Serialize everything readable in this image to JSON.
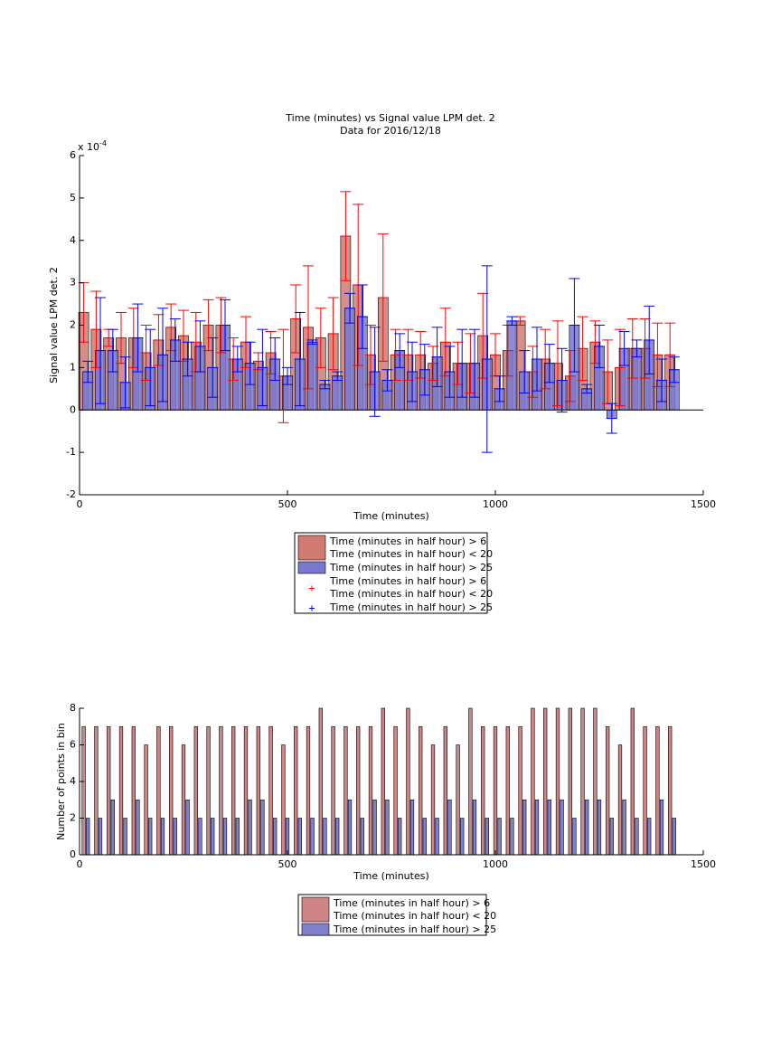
{
  "chart_data": [
    {
      "type": "bar_errorbar",
      "title": "Time (minutes) vs Signal value LPM det. 2",
      "subtitle": "Data for 2016/12/18",
      "x_label": "Time (minutes)",
      "y_label": "Signal value LPM det. 2",
      "y_multiplier": "x 10",
      "y_exponent": "-4",
      "x": [
        15,
        45,
        75,
        105,
        135,
        165,
        195,
        225,
        255,
        285,
        315,
        345,
        375,
        405,
        435,
        465,
        495,
        525,
        555,
        585,
        615,
        645,
        675,
        705,
        735,
        765,
        795,
        825,
        855,
        885,
        915,
        945,
        975,
        1005,
        1035,
        1065,
        1095,
        1125,
        1155,
        1185,
        1215,
        1245,
        1275,
        1305,
        1335,
        1365,
        1395,
        1425
      ],
      "xlim": [
        0,
        1500
      ],
      "xticks": [
        0,
        500,
        1000,
        1500
      ],
      "ylim": [
        -2,
        6
      ],
      "yticks": [
        -2,
        -1,
        0,
        1,
        2,
        3,
        4,
        5,
        6
      ],
      "series": [
        {
          "name": [
            "Time (minutes in half hour) > 6",
            "Time (minutes in half hour) < 20"
          ],
          "color": "#d07a72",
          "error_color": "#ff0000",
          "values": [
            2.3,
            1.9,
            1.7,
            1.7,
            1.7,
            1.35,
            1.65,
            1.95,
            1.75,
            1.6,
            2.0,
            2.0,
            1.2,
            1.6,
            1.15,
            1.35,
            0.8,
            2.15,
            1.95,
            1.7,
            1.8,
            4.1,
            2.95,
            1.3,
            2.65,
            1.3,
            1.3,
            1.3,
            1.1,
            1.6,
            1.1,
            1.1,
            1.75,
            1.3,
            1.4,
            2.1,
            0.9,
            1.2,
            1.1,
            0.8,
            1.45,
            1.6,
            0.9,
            1.0,
            1.45,
            1.45,
            1.3,
            1.3
          ],
          "errors": [
            0.7,
            0.9,
            0.2,
            0.6,
            0.7,
            0.65,
            0.6,
            0.55,
            0.6,
            0.7,
            0.6,
            0.65,
            0.5,
            0.6,
            0.2,
            0.5,
            1.1,
            0.8,
            1.45,
            0.7,
            0.85,
            1.05,
            1.9,
            0.7,
            1.5,
            0.6,
            0.6,
            0.55,
            0.4,
            0.8,
            0.5,
            0.7,
            1.0,
            0.5,
            0.6,
            0.1,
            0.6,
            0.7,
            1.0,
            0.6,
            0.75,
            0.5,
            0.75,
            0.9,
            0.7,
            0.7,
            0.75,
            0.75
          ]
        },
        {
          "name": [
            "Time (minutes in half hour) > 25"
          ],
          "color": "#7878d2",
          "error_color": "#0000ff",
          "values": [
            0.9,
            1.4,
            1.4,
            0.65,
            1.7,
            1.0,
            1.3,
            1.65,
            1.2,
            1.5,
            1.0,
            2.0,
            1.2,
            1.1,
            1.0,
            1.2,
            0.8,
            1.2,
            1.6,
            0.6,
            0.8,
            2.4,
            2.2,
            0.9,
            0.7,
            1.4,
            0.9,
            0.95,
            1.25,
            0.9,
            1.1,
            1.1,
            1.2,
            0.5,
            2.1,
            0.9,
            1.2,
            1.1,
            0.7,
            2.0,
            0.5,
            1.5,
            -0.2,
            1.45,
            1.45,
            1.65,
            0.7,
            0.95
          ],
          "errors": [
            0.25,
            1.25,
            0.5,
            0.6,
            0.8,
            0.9,
            1.1,
            0.5,
            0.4,
            0.6,
            0.7,
            0.6,
            0.3,
            0.5,
            0.9,
            0.5,
            0.2,
            1.1,
            0.05,
            0.1,
            0.1,
            0.35,
            0.75,
            1.05,
            0.25,
            0.4,
            0.7,
            0.6,
            0.7,
            0.6,
            0.8,
            0.8,
            2.2,
            0.3,
            0.1,
            0.5,
            0.75,
            0.45,
            0.75,
            1.1,
            0.1,
            0.5,
            0.35,
            0.4,
            0.2,
            0.8,
            0.5,
            0.3
          ]
        }
      ]
    },
    {
      "type": "bar",
      "x_label": "Time (minutes)",
      "y_label": "Number of points in bin",
      "x": [
        15,
        45,
        75,
        105,
        135,
        165,
        195,
        225,
        255,
        285,
        315,
        345,
        375,
        405,
        435,
        465,
        495,
        525,
        555,
        585,
        615,
        645,
        675,
        705,
        735,
        765,
        795,
        825,
        855,
        885,
        915,
        945,
        975,
        1005,
        1035,
        1065,
        1095,
        1125,
        1155,
        1185,
        1215,
        1245,
        1275,
        1305,
        1335,
        1365,
        1395,
        1425
      ],
      "xlim": [
        0,
        1500
      ],
      "xticks": [
        0,
        500,
        1000,
        1500
      ],
      "ylim": [
        0,
        8
      ],
      "yticks": [
        0,
        2,
        4,
        6,
        8
      ],
      "series": [
        {
          "name": [
            "Time (minutes in half hour) > 6",
            "Time (minutes in half hour) < 20"
          ],
          "color": "#cf8585",
          "values": [
            7,
            7,
            7,
            7,
            7,
            6,
            7,
            7,
            6,
            7,
            7,
            7,
            7,
            7,
            7,
            7,
            6,
            7,
            7,
            8,
            7,
            7,
            7,
            7,
            8,
            7,
            8,
            7,
            6,
            7,
            6,
            8,
            7,
            7,
            7,
            7,
            8,
            8,
            8,
            8,
            8,
            8,
            7,
            6,
            8,
            7,
            7,
            7
          ]
        },
        {
          "name": [
            "Time (minutes in half hour) > 25"
          ],
          "color": "#8080d0",
          "values": [
            2,
            2,
            3,
            2,
            3,
            2,
            2,
            2,
            3,
            2,
            2,
            2,
            2,
            3,
            3,
            2,
            2,
            2,
            2,
            2,
            2,
            3,
            2,
            3,
            3,
            2,
            3,
            2,
            2,
            3,
            2,
            3,
            2,
            2,
            2,
            3,
            3,
            3,
            3,
            2,
            3,
            3,
            2,
            3,
            2,
            2,
            3,
            2
          ]
        }
      ]
    }
  ]
}
